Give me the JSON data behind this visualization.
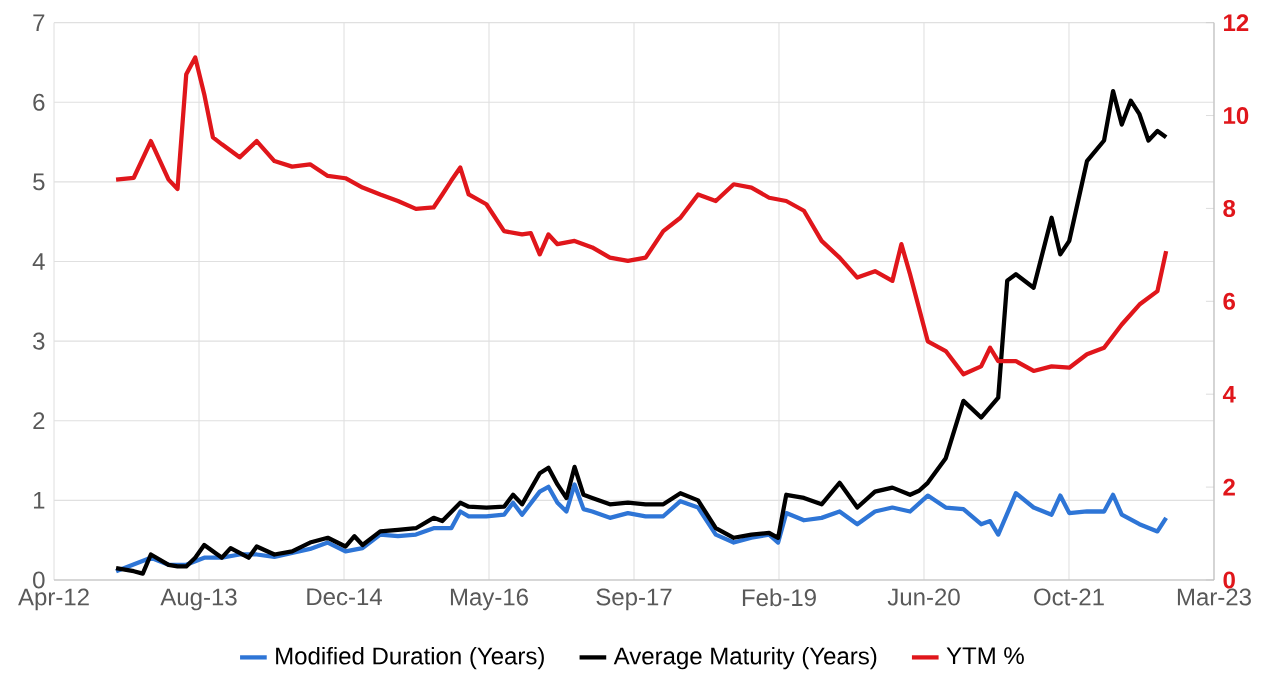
{
  "chart_data": {
    "type": "line",
    "grid": true,
    "legend": "bottom",
    "line_style": "solid",
    "marker": "none",
    "xlim": [
      "2012-04-01",
      "2023-03-15"
    ],
    "xticks": [
      {
        "value": "2012-04-01",
        "label": "Apr-12"
      },
      {
        "value": "2013-08-14",
        "label": "Aug-13"
      },
      {
        "value": "2014-12-27",
        "label": "Dec-14"
      },
      {
        "value": "2016-05-10",
        "label": "May-16"
      },
      {
        "value": "2017-09-22",
        "label": "Sep-17"
      },
      {
        "value": "2019-02-04",
        "label": "Feb-19"
      },
      {
        "value": "2020-06-18",
        "label": "Jun-20"
      },
      {
        "value": "2021-10-31",
        "label": "Oct-21"
      },
      {
        "value": "2023-03-15",
        "label": "Mar-23"
      }
    ],
    "ylim": [
      0,
      7
    ],
    "yticks": [
      0,
      1,
      2,
      3,
      4,
      5,
      6,
      7
    ],
    "y2lim": [
      0,
      12
    ],
    "y2ticks": [
      0,
      2,
      4,
      6,
      8,
      10,
      12
    ],
    "series": [
      {
        "name": "Modified Duration (Years)",
        "color": "#2e75d6",
        "x": [
          "2012-11",
          "2013-03",
          "2013-05",
          "2013-07",
          "2013-09",
          "2013-11",
          "2014-01",
          "2014-03",
          "2014-05",
          "2014-07",
          "2014-09",
          "2014-11",
          "2015-01",
          "2015-03",
          "2015-05",
          "2015-07",
          "2015-09",
          "2015-11",
          "2016-01",
          "2016-02",
          "2016-03",
          "2016-05",
          "2016-07",
          "2016-08",
          "2016-09",
          "2016-11",
          "2016-12",
          "2017-01",
          "2017-02",
          "2017-03",
          "2017-04",
          "2017-05",
          "2017-07",
          "2017-09",
          "2017-11",
          "2018-01",
          "2018-03",
          "2018-05",
          "2018-07",
          "2018-09",
          "2018-11",
          "2019-01",
          "2019-02",
          "2019-03",
          "2019-05",
          "2019-07",
          "2019-09",
          "2019-11",
          "2020-01",
          "2020-03",
          "2020-05",
          "2020-07",
          "2020-09",
          "2020-11",
          "2021-01",
          "2021-02",
          "2021-03",
          "2021-05",
          "2021-07",
          "2021-09",
          "2021-10",
          "2021-11",
          "2022-01",
          "2022-03",
          "2022-04",
          "2022-05",
          "2022-07",
          "2022-09",
          "2022-10"
        ],
        "values": [
          0.11,
          0.28,
          0.19,
          0.19,
          0.28,
          0.28,
          0.32,
          0.32,
          0.29,
          0.34,
          0.39,
          0.47,
          0.36,
          0.4,
          0.57,
          0.55,
          0.57,
          0.65,
          0.65,
          0.86,
          0.8,
          0.8,
          0.82,
          0.97,
          0.82,
          1.11,
          1.17,
          0.97,
          0.86,
          1.2,
          0.89,
          0.86,
          0.78,
          0.84,
          0.8,
          0.8,
          0.99,
          0.91,
          0.57,
          0.47,
          0.53,
          0.57,
          0.47,
          0.84,
          0.75,
          0.78,
          0.86,
          0.7,
          0.86,
          0.91,
          0.86,
          1.06,
          0.91,
          0.89,
          0.7,
          0.74,
          0.57,
          1.09,
          0.91,
          0.82,
          1.06,
          0.84,
          0.86,
          0.86,
          1.07,
          0.82,
          0.7,
          0.61,
          0.78
        ]
      },
      {
        "name": "Average Maturity (Years)",
        "color": "#000000",
        "x": [
          "2012-11",
          "2013-01",
          "2013-02",
          "2013-03",
          "2013-05",
          "2013-06",
          "2013-07",
          "2013-08",
          "2013-09",
          "2013-11",
          "2013-12",
          "2014-02",
          "2014-03",
          "2014-05",
          "2014-07",
          "2014-09",
          "2014-11",
          "2015-01",
          "2015-02",
          "2015-03",
          "2015-05",
          "2015-07",
          "2015-09",
          "2015-11",
          "2015-12",
          "2016-02",
          "2016-03",
          "2016-05",
          "2016-07",
          "2016-08",
          "2016-09",
          "2016-11",
          "2016-12",
          "2017-01",
          "2017-02",
          "2017-03",
          "2017-04",
          "2017-05",
          "2017-07",
          "2017-09",
          "2017-11",
          "2018-01",
          "2018-03",
          "2018-05",
          "2018-07",
          "2018-09",
          "2018-11",
          "2019-01",
          "2019-02",
          "2019-03",
          "2019-05",
          "2019-07",
          "2019-09",
          "2019-11",
          "2020-01",
          "2020-03",
          "2020-05",
          "2020-06",
          "2020-07",
          "2020-09",
          "2020-11",
          "2021-01",
          "2021-03",
          "2021-04",
          "2021-05",
          "2021-07",
          "2021-09",
          "2021-10",
          "2021-11",
          "2022-01",
          "2022-03",
          "2022-04",
          "2022-05",
          "2022-06",
          "2022-07",
          "2022-08",
          "2022-09",
          "2022-10"
        ],
        "values": [
          0.15,
          0.11,
          0.08,
          0.32,
          0.19,
          0.17,
          0.17,
          0.28,
          0.44,
          0.28,
          0.4,
          0.28,
          0.42,
          0.32,
          0.36,
          0.47,
          0.53,
          0.42,
          0.55,
          0.44,
          0.61,
          0.63,
          0.65,
          0.78,
          0.74,
          0.97,
          0.92,
          0.91,
          0.92,
          1.07,
          0.95,
          1.34,
          1.41,
          1.2,
          1.03,
          1.42,
          1.07,
          1.03,
          0.95,
          0.97,
          0.95,
          0.95,
          1.09,
          1.0,
          0.65,
          0.53,
          0.57,
          0.59,
          0.53,
          1.07,
          1.03,
          0.95,
          1.22,
          0.91,
          1.11,
          1.16,
          1.07,
          1.12,
          1.22,
          1.53,
          2.25,
          2.04,
          2.29,
          3.76,
          3.84,
          3.67,
          4.55,
          4.09,
          4.26,
          5.26,
          5.52,
          6.14,
          5.72,
          6.02,
          5.85,
          5.52,
          5.64,
          5.56
        ]
      },
      {
        "name": "YTM %",
        "color": "#e0161b",
        "axis": "y2",
        "x": [
          "2012-11",
          "2013-01",
          "2013-03",
          "2013-05",
          "2013-06",
          "2013-07",
          "2013-08",
          "2013-09",
          "2013-10",
          "2013-11",
          "2014-01",
          "2014-03",
          "2014-05",
          "2014-07",
          "2014-09",
          "2014-11",
          "2015-01",
          "2015-03",
          "2015-05",
          "2015-07",
          "2015-09",
          "2015-11",
          "2015-12",
          "2016-01",
          "2016-02",
          "2016-03",
          "2016-05",
          "2016-07",
          "2016-09",
          "2016-10",
          "2016-11",
          "2016-12",
          "2017-01",
          "2017-03",
          "2017-05",
          "2017-07",
          "2017-09",
          "2017-11",
          "2018-01",
          "2018-03",
          "2018-05",
          "2018-07",
          "2018-09",
          "2018-11",
          "2019-01",
          "2019-03",
          "2019-05",
          "2019-07",
          "2019-09",
          "2019-11",
          "2020-01",
          "2020-03",
          "2020-04",
          "2020-05",
          "2020-07",
          "2020-09",
          "2020-11",
          "2021-01",
          "2021-02",
          "2021-03",
          "2021-05",
          "2021-07",
          "2021-09",
          "2021-11",
          "2022-01",
          "2022-03",
          "2022-05",
          "2022-07",
          "2022-09",
          "2022-10"
        ],
        "values": [
          8.62,
          8.66,
          9.45,
          8.62,
          8.42,
          10.89,
          11.25,
          10.46,
          9.53,
          9.38,
          9.1,
          9.45,
          9.02,
          8.9,
          8.95,
          8.7,
          8.65,
          8.45,
          8.3,
          8.16,
          7.99,
          8.02,
          8.3,
          8.6,
          8.88,
          8.3,
          8.09,
          7.51,
          7.44,
          7.47,
          7.01,
          7.44,
          7.23,
          7.3,
          7.16,
          6.94,
          6.87,
          6.94,
          7.51,
          7.8,
          8.3,
          8.16,
          8.52,
          8.45,
          8.23,
          8.16,
          7.95,
          7.3,
          6.94,
          6.51,
          6.65,
          6.44,
          7.23,
          6.58,
          5.14,
          4.93,
          4.43,
          4.6,
          5.0,
          4.71,
          4.71,
          4.5,
          4.6,
          4.57,
          4.86,
          5.0,
          5.5,
          5.93,
          6.22,
          7.08
        ]
      }
    ]
  }
}
